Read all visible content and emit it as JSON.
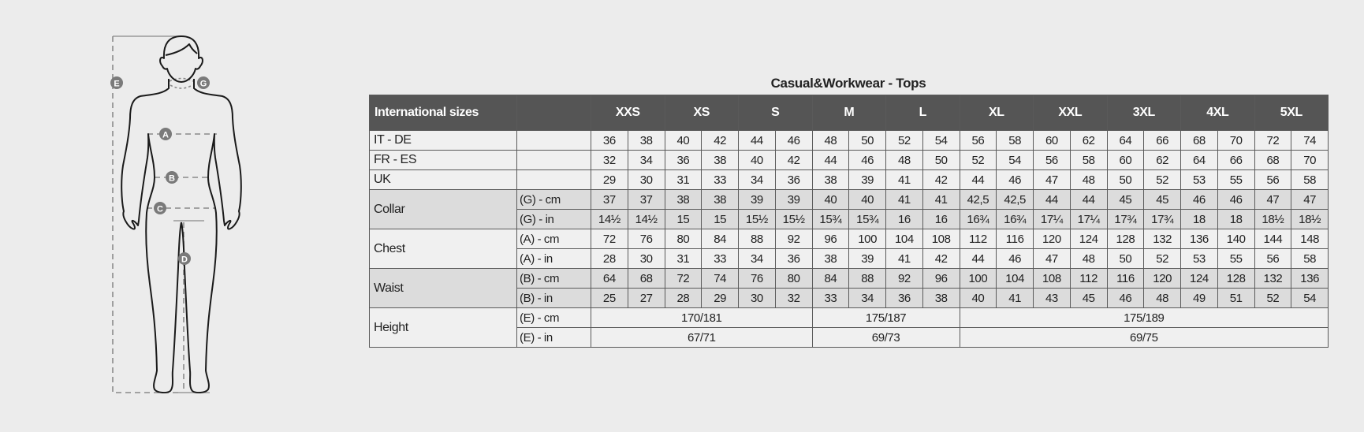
{
  "title": "Casual&Workwear - Tops",
  "colors": {
    "header_bg": "#555555",
    "shaded_row": "#dcdcdc",
    "row": "#f0f0f0",
    "background": "#ececec",
    "marker": "#7a7a7a"
  },
  "figure": {
    "markers": [
      "E",
      "G",
      "A",
      "B",
      "C",
      "D"
    ]
  },
  "table": {
    "header_label": "International sizes",
    "sizes": [
      "XXS",
      "XS",
      "S",
      "M",
      "L",
      "XL",
      "XXL",
      "3XL",
      "4XL",
      "5XL"
    ],
    "groups": [
      {
        "label": "IT - DE",
        "shaded": false,
        "rows": [
          {
            "unit": "",
            "values": [
              "36",
              "38",
              "40",
              "42",
              "44",
              "46",
              "48",
              "50",
              "52",
              "54",
              "56",
              "58",
              "60",
              "62",
              "64",
              "66",
              "68",
              "70",
              "72",
              "74"
            ]
          }
        ]
      },
      {
        "label": "FR - ES",
        "shaded": false,
        "rows": [
          {
            "unit": "",
            "values": [
              "32",
              "34",
              "36",
              "38",
              "40",
              "42",
              "44",
              "46",
              "48",
              "50",
              "52",
              "54",
              "56",
              "58",
              "60",
              "62",
              "64",
              "66",
              "68",
              "70"
            ]
          }
        ]
      },
      {
        "label": "UK",
        "shaded": false,
        "rows": [
          {
            "unit": "",
            "values": [
              "29",
              "30",
              "31",
              "33",
              "34",
              "36",
              "38",
              "39",
              "41",
              "42",
              "44",
              "46",
              "47",
              "48",
              "50",
              "52",
              "53",
              "55",
              "56",
              "58"
            ]
          }
        ]
      },
      {
        "label": "Collar",
        "shaded": true,
        "rows": [
          {
            "unit": "(G) - cm",
            "values": [
              "37",
              "37",
              "38",
              "38",
              "39",
              "39",
              "40",
              "40",
              "41",
              "41",
              "42,5",
              "42,5",
              "44",
              "44",
              "45",
              "45",
              "46",
              "46",
              "47",
              "47"
            ]
          },
          {
            "unit": "(G)  - in",
            "values": [
              "14½",
              "14½",
              "15",
              "15",
              "15½",
              "15½",
              "15¾",
              "15¾",
              "16",
              "16",
              "16¾",
              "16¾",
              "17¼",
              "17¼",
              "17¾",
              "17¾",
              "18",
              "18",
              "18½",
              "18½"
            ]
          }
        ]
      },
      {
        "label": "Chest",
        "shaded": false,
        "rows": [
          {
            "unit": "(A) - cm",
            "values": [
              "72",
              "76",
              "80",
              "84",
              "88",
              "92",
              "96",
              "100",
              "104",
              "108",
              "112",
              "116",
              "120",
              "124",
              "128",
              "132",
              "136",
              "140",
              "144",
              "148"
            ]
          },
          {
            "unit": "(A) - in",
            "values": [
              "28",
              "30",
              "31",
              "33",
              "34",
              "36",
              "38",
              "39",
              "41",
              "42",
              "44",
              "46",
              "47",
              "48",
              "50",
              "52",
              "53",
              "55",
              "56",
              "58"
            ]
          }
        ]
      },
      {
        "label": "Waist",
        "shaded": true,
        "rows": [
          {
            "unit": "(B) - cm",
            "values": [
              "64",
              "68",
              "72",
              "74",
              "76",
              "80",
              "84",
              "88",
              "92",
              "96",
              "100",
              "104",
              "108",
              "112",
              "116",
              "120",
              "124",
              "128",
              "132",
              "136"
            ]
          },
          {
            "unit": "(B) - in",
            "values": [
              "25",
              "27",
              "28",
              "29",
              "30",
              "32",
              "33",
              "34",
              "36",
              "38",
              "40",
              "41",
              "43",
              "45",
              "46",
              "48",
              "49",
              "51",
              "52",
              "54"
            ]
          }
        ]
      },
      {
        "label": "Height",
        "shaded": false,
        "rows": [
          {
            "unit": "(E) - cm",
            "spans": [
              {
                "value": "170/181",
                "sizes": [
                  "XXS",
                  "XS",
                  "S"
                ]
              },
              {
                "value": "175/187",
                "sizes": [
                  "M",
                  "L"
                ]
              },
              {
                "value": "175/189",
                "sizes": [
                  "XL",
                  "XXL",
                  "3XL",
                  "4XL",
                  "5XL"
                ]
              }
            ]
          },
          {
            "unit": "(E) - in",
            "spans": [
              {
                "value": "67/71",
                "sizes": [
                  "XXS",
                  "XS",
                  "S"
                ]
              },
              {
                "value": "69/73",
                "sizes": [
                  "M",
                  "L"
                ]
              },
              {
                "value": "69/75",
                "sizes": [
                  "XL",
                  "XXL",
                  "3XL",
                  "4XL",
                  "5XL"
                ]
              }
            ]
          }
        ]
      }
    ]
  }
}
